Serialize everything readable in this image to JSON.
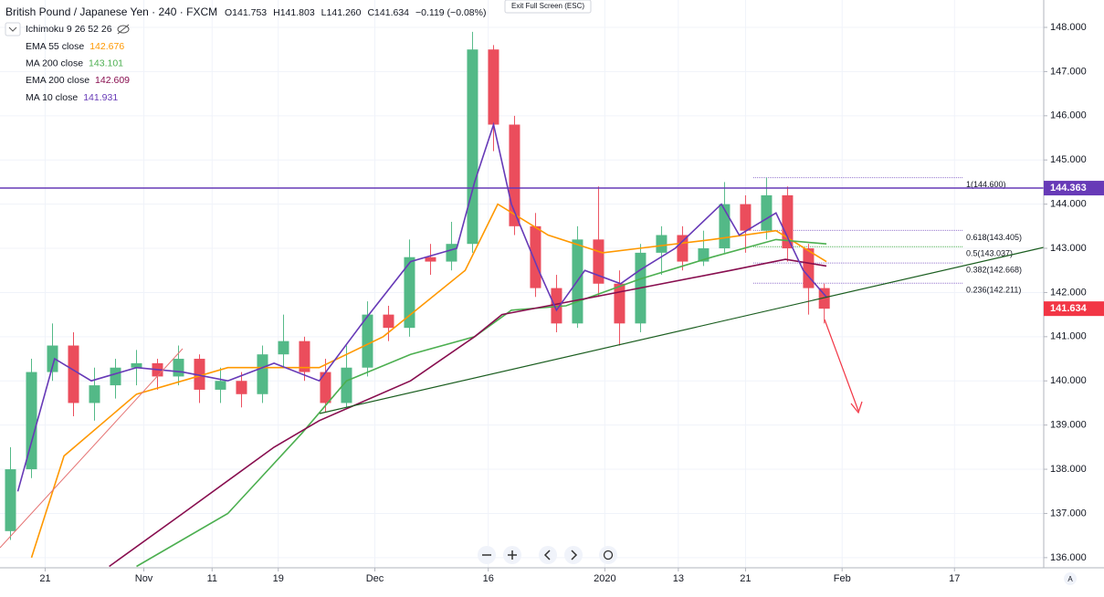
{
  "chart_data": {
    "type": "candlestick",
    "title": "British Pound / Japanese Yen · 240 · FXCM",
    "ohlc_texts": [
      "O141.753",
      "H141.803",
      "L141.260",
      "C141.634",
      "−0.119 (−0.08%)"
    ],
    "indicator": "Ichimoku 9 26 52 26",
    "exit_button": "Exit Full Screen (ESC)",
    "corner_button": "A",
    "xlim": [
      0,
      99.4
    ],
    "xticks": [
      {
        "value": 4.3,
        "label": "21"
      },
      {
        "value": 13.7,
        "label": "Nov"
      },
      {
        "value": 20.2,
        "label": "11"
      },
      {
        "value": 26.5,
        "label": "19"
      },
      {
        "value": 35.7,
        "label": "Dec"
      },
      {
        "value": 46.5,
        "label": "16"
      },
      {
        "value": 57.6,
        "label": "2020"
      },
      {
        "value": 64.6,
        "label": "13"
      },
      {
        "value": 71,
        "label": "21"
      },
      {
        "value": 80.2,
        "label": "Feb"
      },
      {
        "value": 90.9,
        "label": "17"
      }
    ],
    "ylim": [
      135.77,
      148.62
    ],
    "yticks": [
      {
        "value": 136,
        "label": "136.000"
      },
      {
        "value": 137,
        "label": "137.000"
      },
      {
        "value": 138,
        "label": "138.000"
      },
      {
        "value": 139,
        "label": "139.000"
      },
      {
        "value": 140,
        "label": "140.000"
      },
      {
        "value": 141,
        "label": "141.000"
      },
      {
        "value": 142,
        "label": "142.000"
      },
      {
        "value": 143,
        "label": "143.000"
      },
      {
        "value": 144,
        "label": "144.000"
      },
      {
        "value": 145,
        "label": "145.000"
      },
      {
        "value": 146,
        "label": "146.000"
      },
      {
        "value": 147,
        "label": "147.000"
      },
      {
        "value": 148,
        "label": "148.000"
      }
    ],
    "grid": true,
    "up_color": "#53b987",
    "down_color": "#eb4d5c",
    "candles": {
      "x": [
        1,
        3,
        5,
        7,
        9,
        11,
        13,
        15,
        17,
        19,
        21,
        23,
        25,
        27,
        29,
        31,
        33,
        35,
        37,
        39,
        41,
        43,
        45,
        47,
        49,
        51,
        53,
        55,
        57,
        59,
        61,
        63,
        65,
        67,
        69,
        71,
        73,
        75,
        77,
        78.5
      ],
      "open": [
        136.6,
        138.0,
        140.2,
        140.8,
        139.5,
        139.9,
        140.3,
        140.4,
        140.1,
        140.5,
        139.8,
        140.0,
        139.7,
        140.6,
        140.9,
        140.2,
        139.5,
        140.3,
        141.5,
        141.2,
        142.8,
        142.7,
        143.1,
        147.5,
        145.8,
        143.5,
        142.1,
        141.3,
        143.2,
        142.2,
        141.3,
        142.9,
        143.3,
        142.7,
        143.0,
        144.0,
        143.4,
        144.2,
        143.0,
        142.1
      ],
      "high": [
        138.5,
        140.5,
        141.3,
        141.1,
        140.3,
        140.5,
        140.7,
        140.5,
        140.8,
        140.6,
        140.3,
        140.2,
        140.8,
        141.5,
        141.0,
        140.5,
        140.8,
        141.8,
        141.7,
        143.2,
        143.1,
        143.6,
        147.9,
        147.6,
        146.0,
        143.8,
        142.4,
        143.5,
        144.4,
        142.5,
        143.1,
        143.5,
        143.5,
        143.4,
        144.5,
        144.2,
        144.6,
        144.4,
        143.1,
        142.2
      ],
      "low": [
        136.4,
        137.8,
        140.0,
        139.2,
        139.1,
        139.6,
        139.9,
        139.8,
        139.9,
        139.5,
        139.5,
        139.4,
        139.5,
        140.3,
        140.0,
        139.3,
        139.4,
        140.1,
        140.9,
        141.0,
        142.4,
        142.5,
        142.9,
        145.2,
        143.3,
        141.9,
        141.1,
        141.2,
        141.9,
        140.8,
        141.1,
        142.4,
        142.5,
        142.6,
        142.9,
        142.9,
        143.2,
        142.7,
        141.5,
        141.3
      ],
      "close": [
        138.0,
        140.2,
        140.8,
        139.5,
        139.9,
        140.3,
        140.4,
        140.1,
        140.5,
        139.8,
        140.0,
        139.7,
        140.6,
        140.9,
        140.2,
        139.5,
        140.3,
        141.5,
        141.2,
        142.8,
        142.7,
        143.1,
        147.5,
        145.8,
        143.5,
        142.1,
        141.3,
        143.2,
        142.2,
        141.3,
        142.9,
        143.3,
        142.7,
        143.0,
        144.0,
        143.4,
        144.2,
        143.0,
        142.1,
        141.634
      ]
    },
    "series": [
      {
        "name": "EMA 55 close",
        "last_label": "142.676",
        "color": "#ff9800",
        "x": [
          3.0,
          6.1,
          13,
          21.7,
          30.4,
          36.5,
          44.3,
          47.4,
          52.2,
          57.4,
          60.9,
          67.8,
          73.9,
          78.7
        ],
        "values": [
          136.0,
          138.3,
          139.7,
          140.3,
          140.3,
          141.0,
          142.5,
          144.0,
          143.3,
          142.9,
          143.0,
          143.2,
          143.4,
          142.7
        ]
      },
      {
        "name": "MA 200 close",
        "last_label": "143.101",
        "color": "#4caf50",
        "x": [
          13,
          21.7,
          28.7,
          33,
          39.1,
          45.2,
          48.7,
          53.9,
          60.9,
          67.8,
          73.9,
          78.7
        ],
        "values": [
          135.8,
          137.0,
          138.8,
          140.0,
          140.6,
          141.0,
          141.6,
          141.7,
          142.3,
          142.8,
          143.2,
          143.1
        ]
      },
      {
        "name": "EMA 200 close",
        "last_label": "142.609",
        "color": "#880e4f",
        "x": [
          10.4,
          17.4,
          26.1,
          30.4,
          39.1,
          45.2,
          47.8,
          52.2,
          60.9,
          69.6,
          74.8,
          78.7
        ],
        "values": [
          135.8,
          137.0,
          138.5,
          139.1,
          140.0,
          141.0,
          141.5,
          141.7,
          142.1,
          142.5,
          142.75,
          142.6
        ]
      },
      {
        "name": "MA 10 close",
        "last_label": "141.931",
        "color": "#673ab7",
        "x": [
          1.7,
          5.2,
          8.7,
          13,
          17.4,
          21.7,
          26.1,
          30.4,
          34.8,
          39.1,
          43.5,
          45.2,
          47,
          48.7,
          51.3,
          53,
          55.7,
          59.1,
          60.9,
          64.3,
          68.7,
          70.4,
          73.9,
          76.5,
          78.7
        ],
        "values": [
          137.5,
          140.5,
          140.0,
          140.3,
          140.2,
          140.0,
          140.4,
          140.0,
          141.4,
          142.7,
          143.0,
          144.5,
          145.8,
          144.0,
          142.5,
          141.6,
          142.5,
          142.2,
          142.5,
          143.0,
          144.0,
          143.3,
          143.8,
          142.5,
          141.9
        ]
      }
    ],
    "hline": {
      "value": 144.363,
      "color": "#673ab7"
    },
    "last_price": {
      "value": 141.634,
      "color": "#f23645"
    },
    "fib": [
      {
        "label": "1(144.600)",
        "value": 144.6
      },
      {
        "label": "0.618(143.405)",
        "value": 143.405
      },
      {
        "label": "0.5(143.037)",
        "value": 143.037
      },
      {
        "label": "0.382(142.668)",
        "value": 142.668
      },
      {
        "label": "0.236(142.211)",
        "value": 142.211
      }
    ]
  }
}
